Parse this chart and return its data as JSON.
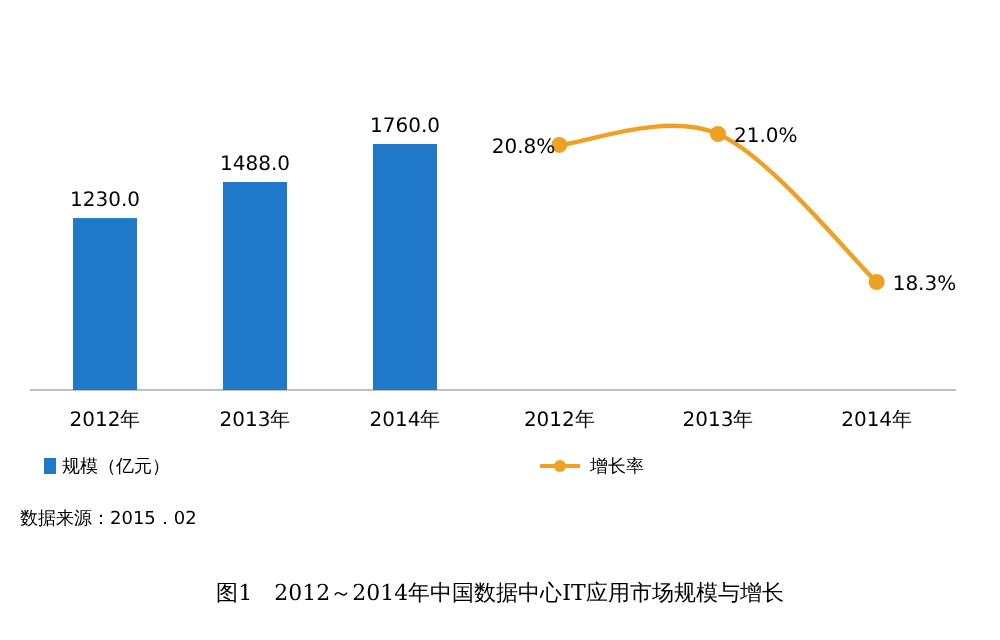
{
  "chart_data": [
    {
      "type": "bar",
      "categories": [
        "2012年",
        "2013年",
        "2014年"
      ],
      "series": [
        {
          "name": "规模（亿元）",
          "color": "#1f78c8",
          "values": [
            1230.0,
            1488.0,
            1760.0
          ],
          "value_labels": [
            "1230.0",
            "1488.0",
            "1760.0"
          ]
        }
      ],
      "legend": "bottom",
      "annotations": [
        "数据来源：2015．02",
        "图1　2012～2014年中国数据中心IT应用市场规模与增长"
      ]
    },
    {
      "type": "line",
      "categories": [
        "2012年",
        "2013年",
        "2014年"
      ],
      "series": [
        {
          "name": "增长率",
          "color": "#f0a023",
          "values": [
            20.8,
            21.0,
            18.3
          ],
          "value_labels": [
            "20.8%",
            "21.0%",
            "18.3%"
          ]
        }
      ],
      "marker": "circle",
      "legend": "bottom"
    }
  ]
}
